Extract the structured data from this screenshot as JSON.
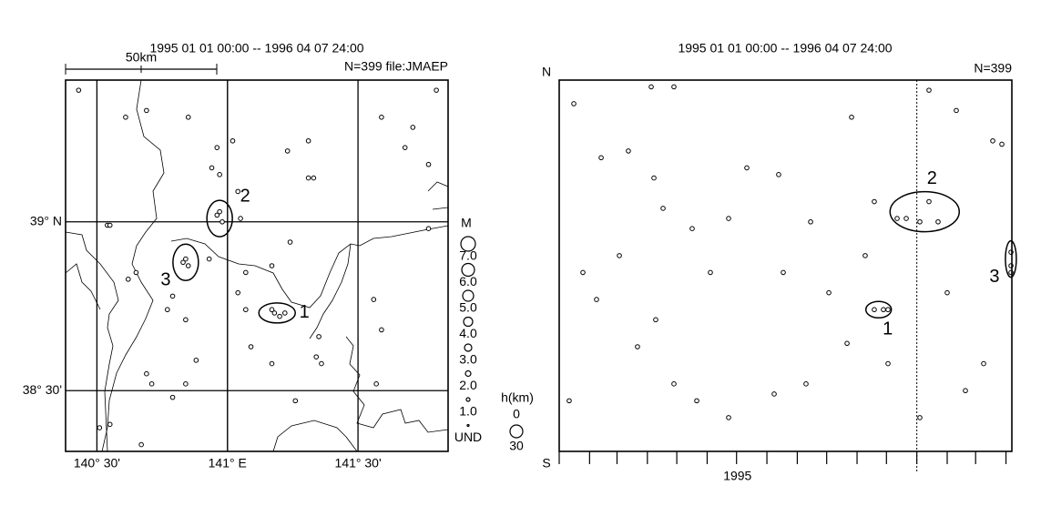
{
  "map": {
    "period": "1995 01 01 00:00 -- 1996 04 07 24:00",
    "scale_label": "50km",
    "info": "N=399 file:JMAEP",
    "xlim": [
      140.38,
      141.845
    ],
    "ylim": [
      38.32,
      39.42
    ],
    "xticks": [
      {
        "value": 140.5,
        "label": "140° 30'"
      },
      {
        "value": 141,
        "label": "141° E"
      },
      {
        "value": 141.5,
        "label": "141° 30'"
      }
    ],
    "yticks": [
      {
        "value": 38.5,
        "label": "38° 30'"
      },
      {
        "value": 39,
        "label": "39° N"
      }
    ],
    "points": {
      "lon": [
        140.43,
        140.61,
        140.69,
        140.85,
        140.96,
        140.94,
        140.97,
        141.02,
        141.04,
        141.05,
        140.54,
        140.55,
        140.62,
        140.65,
        140.77,
        140.79,
        140.69,
        140.71,
        140.79,
        140.84,
        140.55,
        140.51,
        140.67,
        141.07,
        141.04,
        141.07,
        141.09,
        141.17,
        141.24,
        141.33,
        141.31,
        141.23,
        141.31,
        141.59,
        141.71,
        141.68,
        141.8,
        141.77,
        141.77,
        141.35,
        141.34,
        141.36,
        141.17,
        141.26,
        141.56,
        141.59,
        140.88,
        140.84,
        140.93,
        141.57,
        141.18,
        141.2,
        141.22,
        141.17,
        140.96,
        140.98,
        140.97,
        140.83,
        140.85,
        140.84
      ],
      "lat": [
        39.39,
        39.31,
        39.33,
        39.31,
        39.22,
        39.16,
        39.14,
        39.24,
        39.09,
        39.01,
        38.99,
        38.99,
        38.83,
        38.85,
        38.74,
        38.78,
        38.55,
        38.52,
        38.48,
        38.52,
        38.4,
        38.39,
        38.34,
        38.85,
        38.79,
        38.74,
        38.63,
        38.87,
        38.94,
        39.13,
        39.13,
        39.21,
        39.24,
        39.31,
        39.28,
        39.22,
        39.39,
        39.17,
        38.98,
        38.66,
        38.6,
        38.58,
        38.58,
        38.47,
        38.77,
        38.68,
        38.59,
        38.71,
        38.89,
        38.52,
        38.73,
        38.72,
        38.73,
        38.74,
        39.02,
        39.0,
        39.03,
        38.88,
        38.87,
        38.89
      ]
    },
    "clusters": [
      {
        "label": "1",
        "lon": 141.19,
        "lat": 38.73
      },
      {
        "label": "2",
        "lon": 140.97,
        "lat": 39.01
      },
      {
        "label": "3",
        "lon": 140.84,
        "lat": 38.88
      }
    ],
    "magnitude_legend": {
      "title": "M",
      "labels": [
        "7.0",
        "6.0",
        "5.0",
        "4.0",
        "3.0",
        "2.0",
        "1.0",
        "UND"
      ]
    },
    "depth_legend": {
      "title": "h(km)",
      "labels": [
        "0",
        "30"
      ]
    }
  },
  "spacetime": {
    "period": "1995 01 01 00:00 -- 1996 04 07 24:00",
    "info": "N=399",
    "north_label": "N",
    "south_label": "S",
    "xlim": [
      0,
      462
    ],
    "ylim": [
      38.32,
      39.42
    ],
    "xticks": [
      0,
      31,
      59,
      90,
      120,
      151,
      181,
      212,
      243,
      273,
      304,
      334,
      365,
      396,
      425,
      456
    ],
    "year_label": {
      "value": 182,
      "label": "1995"
    },
    "year_divider": 365,
    "points": {
      "day": [
        14.9,
        42.8,
        70.6,
        93.9,
        117.1,
        96.7,
        106.0,
        135.7,
        191.5,
        224.0,
        256.6,
        298.4,
        321.6,
        344.9,
        377.4,
        405.3,
        442.5,
        24.2,
        38.1,
        79.9,
        117.1,
        140.4,
        172.9,
        219.4,
        251.9,
        293.8,
        335.6,
        368.1,
        396.0,
        433.2,
        451.8,
        10.2,
        61.4,
        172.9,
        228.7,
        414.6,
        275.2,
        98.5,
        154.3,
        312.3,
        321.6,
        330.9,
        335.6,
        354.2,
        368.1,
        386.7,
        377.4,
        461.1,
        461.1,
        461.1
      ],
      "lat": [
        39.35,
        39.19,
        39.21,
        39.4,
        39.4,
        39.13,
        39.04,
        38.98,
        39.16,
        39.14,
        39.0,
        39.31,
        39.06,
        39.01,
        39.39,
        39.33,
        39.24,
        38.85,
        38.77,
        38.63,
        38.52,
        38.47,
        38.42,
        38.49,
        38.52,
        38.64,
        38.58,
        38.42,
        38.79,
        38.58,
        39.23,
        38.47,
        38.9,
        39.01,
        38.85,
        38.5,
        38.79,
        38.71,
        38.85,
        38.9,
        38.74,
        38.74,
        38.74,
        39.01,
        39.0,
        39.0,
        39.06,
        38.91,
        38.87,
        38.85
      ]
    },
    "clusters": [
      {
        "label": "1",
        "day": 326,
        "lat": 38.74
      },
      {
        "label": "2",
        "day": 373,
        "lat": 39.03
      },
      {
        "label": "3",
        "day": 461,
        "lat": 38.89
      }
    ]
  }
}
